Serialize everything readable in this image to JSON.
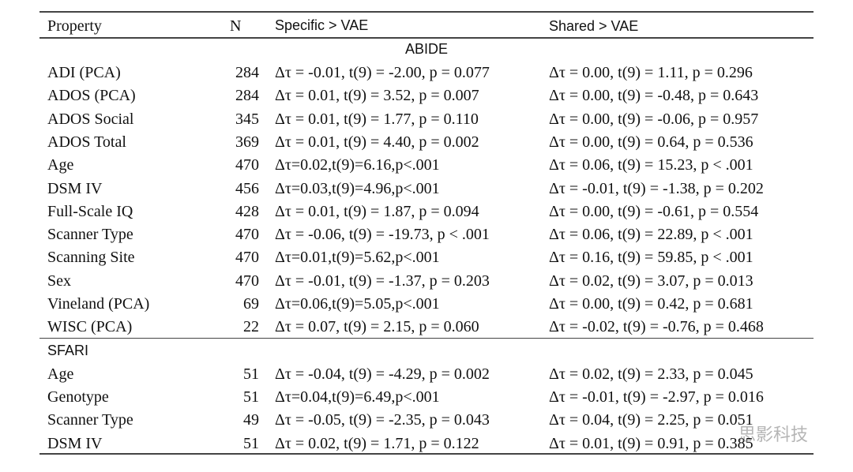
{
  "table": {
    "header": [
      "Property",
      "N",
      "Specific > VAE",
      "Shared > VAE"
    ],
    "sections": [
      {
        "title": "ABIDE",
        "rows": [
          [
            "ADI (PCA)",
            284,
            "Δτ = -0.01, t(9) = -2.00, p = 0.077",
            "Δτ = 0.00, t(9) = 1.11, p = 0.296"
          ],
          [
            "ADOS (PCA)",
            284,
            "Δτ = 0.01, t(9) = 3.52, p = 0.007",
            "Δτ = 0.00, t(9) = -0.48, p = 0.643"
          ],
          [
            "ADOS Social",
            345,
            "Δτ = 0.01, t(9) = 1.77, p = 0.110",
            "Δτ = 0.00, t(9) = -0.06, p = 0.957"
          ],
          [
            "ADOS Total",
            369,
            "Δτ = 0.01, t(9) = 4.40, p = 0.002",
            "Δτ = 0.00, t(9) = 0.64, p = 0.536"
          ],
          [
            "Age",
            470,
            "Δτ=0.02,t(9)=6.16,p<.001",
            "Δτ = 0.06, t(9) = 15.23, p < .001"
          ],
          [
            "DSM IV",
            456,
            "Δτ=0.03,t(9)=4.96,p<.001",
            "Δτ = -0.01, t(9) = -1.38, p = 0.202"
          ],
          [
            "Full-Scale IQ",
            428,
            "Δτ = 0.01, t(9) = 1.87, p = 0.094",
            "Δτ = 0.00, t(9) = -0.61, p = 0.554"
          ],
          [
            "Scanner Type",
            470,
            "Δτ = -0.06, t(9) = -19.73, p < .001",
            "Δτ = 0.06, t(9) = 22.89, p < .001"
          ],
          [
            "Scanning Site",
            470,
            "Δτ=0.01,t(9)=5.62,p<.001",
            "Δτ = 0.16, t(9) = 59.85, p < .001"
          ],
          [
            "Sex",
            470,
            "Δτ = -0.01, t(9) = -1.37, p = 0.203",
            "Δτ = 0.02, t(9) = 3.07, p = 0.013"
          ],
          [
            "Vineland (PCA)",
            69,
            "Δτ=0.06,t(9)=5.05,p<.001",
            "Δτ = 0.00, t(9) = 0.42, p = 0.681"
          ],
          [
            "WISC (PCA)",
            22,
            "Δτ = 0.07, t(9) = 2.15, p = 0.060",
            "Δτ = -0.02, t(9) = -0.76, p = 0.468"
          ]
        ]
      },
      {
        "title": "SFARI",
        "rows": [
          [
            "Age",
            51,
            "Δτ = -0.04, t(9) = -4.29, p = 0.002",
            "Δτ = 0.02, t(9) = 2.33, p = 0.045"
          ],
          [
            "Genotype",
            51,
            "Δτ=0.04,t(9)=6.49,p<.001",
            "Δτ = -0.01, t(9) = -2.97, p = 0.016"
          ],
          [
            "Scanner Type",
            49,
            "Δτ = -0.05, t(9) = -2.35, p = 0.043",
            "Δτ = 0.04, t(9) = 2.25, p = 0.051"
          ],
          [
            "DSM IV",
            51,
            "Δτ = 0.02, t(9) = 1.71, p = 0.122",
            "Δτ = 0.01, t(9) = 0.91, p = 0.385"
          ]
        ]
      }
    ],
    "watermark": "思影科技"
  }
}
